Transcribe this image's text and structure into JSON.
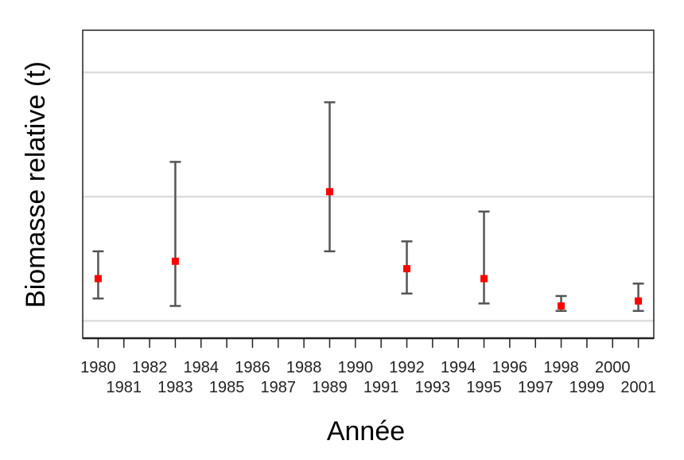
{
  "chart_data": {
    "type": "scatter",
    "title": "",
    "xlabel": "Année",
    "ylabel": "Biomasse relative (t)",
    "xlim": [
      1979.4,
      2001.6
    ],
    "ylim": [
      -0.07,
      1.17
    ],
    "y_gridlines": [
      0,
      0.5,
      1
    ],
    "y_tick_labels_shown": false,
    "grid": true,
    "legend": "none",
    "x_ticks": [
      1980,
      1981,
      1982,
      1983,
      1984,
      1985,
      1986,
      1987,
      1988,
      1989,
      1990,
      1991,
      1992,
      1993,
      1994,
      1995,
      1996,
      1997,
      1998,
      1999,
      2000,
      2001
    ],
    "points": [
      {
        "x": 1980,
        "y": 0.17,
        "low": 0.09,
        "high": 0.28
      },
      {
        "x": 1983,
        "y": 0.24,
        "low": 0.06,
        "high": 0.64
      },
      {
        "x": 1989,
        "y": 0.52,
        "low": 0.28,
        "high": 0.88
      },
      {
        "x": 1992,
        "y": 0.21,
        "low": 0.11,
        "high": 0.32
      },
      {
        "x": 1995,
        "y": 0.17,
        "low": 0.07,
        "high": 0.44
      },
      {
        "x": 1998,
        "y": 0.06,
        "low": 0.04,
        "high": 0.1
      },
      {
        "x": 2001,
        "y": 0.08,
        "low": 0.04,
        "high": 0.15
      }
    ],
    "colors": {
      "point": "#ff0000",
      "errorbar": "#555555",
      "grid": "#dddddd",
      "frame": "#222222"
    }
  }
}
